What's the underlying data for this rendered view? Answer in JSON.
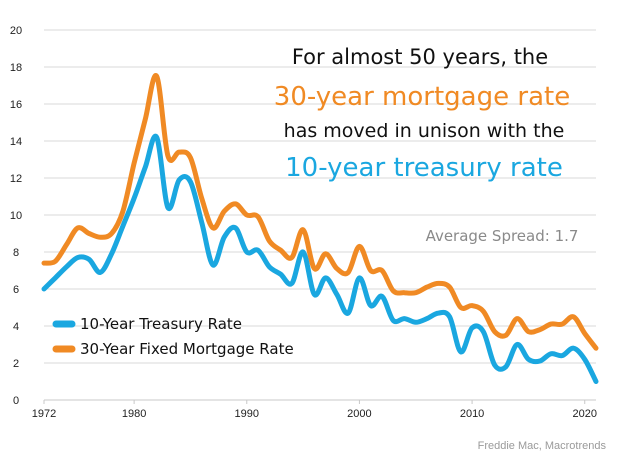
{
  "chart_data": {
    "type": "line",
    "title_lines": [
      "For almost 50 years, the",
      "30-year mortgage rate",
      "has moved in unison with the",
      "10-year treasury rate"
    ],
    "annotation": "Average Spread: 1.7",
    "source": "Freddie Mac, Macrotrends",
    "xlim": [
      1972,
      2021
    ],
    "ylim": [
      0,
      20
    ],
    "x_ticks": [
      1972,
      1980,
      1990,
      2000,
      2010,
      2020
    ],
    "y_ticks": [
      0,
      2,
      4,
      6,
      8,
      10,
      12,
      14,
      16,
      18,
      20
    ],
    "grid": "horizontal",
    "legend_position": "bottom-left",
    "series": [
      {
        "name": "10-Year Treasury Rate",
        "color": "#1aa7e0",
        "x": [
          1972,
          1973,
          1974,
          1975,
          1976,
          1977,
          1978,
          1979,
          1980,
          1981,
          1982,
          1983,
          1984,
          1985,
          1986,
          1987,
          1988,
          1989,
          1990,
          1991,
          1992,
          1993,
          1994,
          1995,
          1996,
          1997,
          1998,
          1999,
          2000,
          2001,
          2002,
          2003,
          2004,
          2005,
          2006,
          2007,
          2008,
          2009,
          2010,
          2011,
          2012,
          2013,
          2014,
          2015,
          2016,
          2017,
          2018,
          2019,
          2020,
          2021
        ],
        "y": [
          6.0,
          6.6,
          7.2,
          7.7,
          7.6,
          6.9,
          7.9,
          9.4,
          10.9,
          12.6,
          14.2,
          10.4,
          11.9,
          11.8,
          9.6,
          7.3,
          8.8,
          9.3,
          8.0,
          8.1,
          7.2,
          6.8,
          6.3,
          8.0,
          5.7,
          6.6,
          5.7,
          4.7,
          6.6,
          5.1,
          5.6,
          4.3,
          4.4,
          4.2,
          4.4,
          4.7,
          4.5,
          2.6,
          3.9,
          3.7,
          1.9,
          1.8,
          3.0,
          2.2,
          2.1,
          2.5,
          2.4,
          2.8,
          2.2,
          1.0
        ]
      },
      {
        "name": "30-Year Fixed Mortgage Rate",
        "color": "#f08a24",
        "x": [
          1972,
          1973,
          1974,
          1975,
          1976,
          1977,
          1978,
          1979,
          1980,
          1981,
          1982,
          1983,
          1984,
          1985,
          1986,
          1987,
          1988,
          1989,
          1990,
          1991,
          1992,
          1993,
          1994,
          1995,
          1996,
          1997,
          1998,
          1999,
          2000,
          2001,
          2002,
          2003,
          2004,
          2005,
          2006,
          2007,
          2008,
          2009,
          2010,
          2011,
          2012,
          2013,
          2014,
          2015,
          2016,
          2017,
          2018,
          2019,
          2020,
          2021
        ],
        "y": [
          7.4,
          7.5,
          8.4,
          9.3,
          9.0,
          8.8,
          9.0,
          10.2,
          12.8,
          15.2,
          17.5,
          13.2,
          13.4,
          13.1,
          10.9,
          9.3,
          10.2,
          10.6,
          10.0,
          9.9,
          8.6,
          8.1,
          7.7,
          9.2,
          7.1,
          7.9,
          7.1,
          6.9,
          8.3,
          7.0,
          7.0,
          5.9,
          5.8,
          5.8,
          6.1,
          6.3,
          6.1,
          5.0,
          5.1,
          4.8,
          3.7,
          3.5,
          4.4,
          3.7,
          3.8,
          4.1,
          4.1,
          4.5,
          3.6,
          2.8
        ]
      }
    ]
  }
}
